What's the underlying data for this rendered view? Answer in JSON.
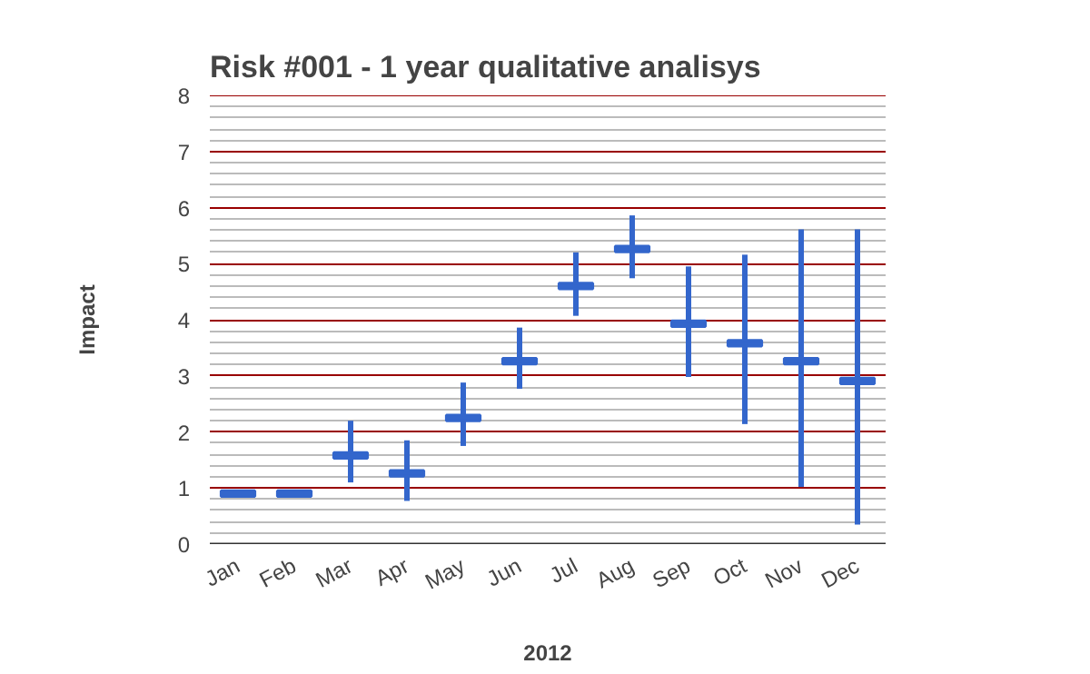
{
  "chart_data": {
    "type": "candlestick",
    "title": "Risk #001 - 1 year qualitative analisys",
    "xlabel": "2012",
    "ylabel": "Impact",
    "categories": [
      "Jan",
      "Feb",
      "Mar",
      "Apr",
      "May",
      "Jun",
      "Jul",
      "Aug",
      "Sep",
      "Oct",
      "Nov",
      "Dec"
    ],
    "ohlc": [
      [
        0.95,
        0.95,
        0.85,
        0.85
      ],
      [
        0.95,
        0.95,
        0.85,
        0.85
      ],
      [
        1.63,
        2.2,
        1.1,
        1.53
      ],
      [
        1.31,
        1.85,
        0.77,
        1.21
      ],
      [
        2.3,
        2.88,
        1.75,
        2.2
      ],
      [
        3.31,
        3.86,
        2.77,
        3.21
      ],
      [
        4.65,
        5.2,
        4.07,
        4.55
      ],
      [
        5.31,
        5.86,
        4.74,
        5.21
      ],
      [
        3.98,
        4.95,
        2.98,
        3.88
      ],
      [
        3.63,
        5.16,
        2.14,
        3.53
      ],
      [
        3.31,
        5.61,
        1.02,
        3.21
      ],
      [
        2.96,
        5.61,
        0.35,
        2.86
      ]
    ],
    "color": "#3366cc",
    "ylim": [
      0,
      8
    ],
    "yticks": [
      0,
      1,
      2,
      3,
      4,
      5,
      6,
      7,
      8
    ],
    "grid": "y"
  }
}
